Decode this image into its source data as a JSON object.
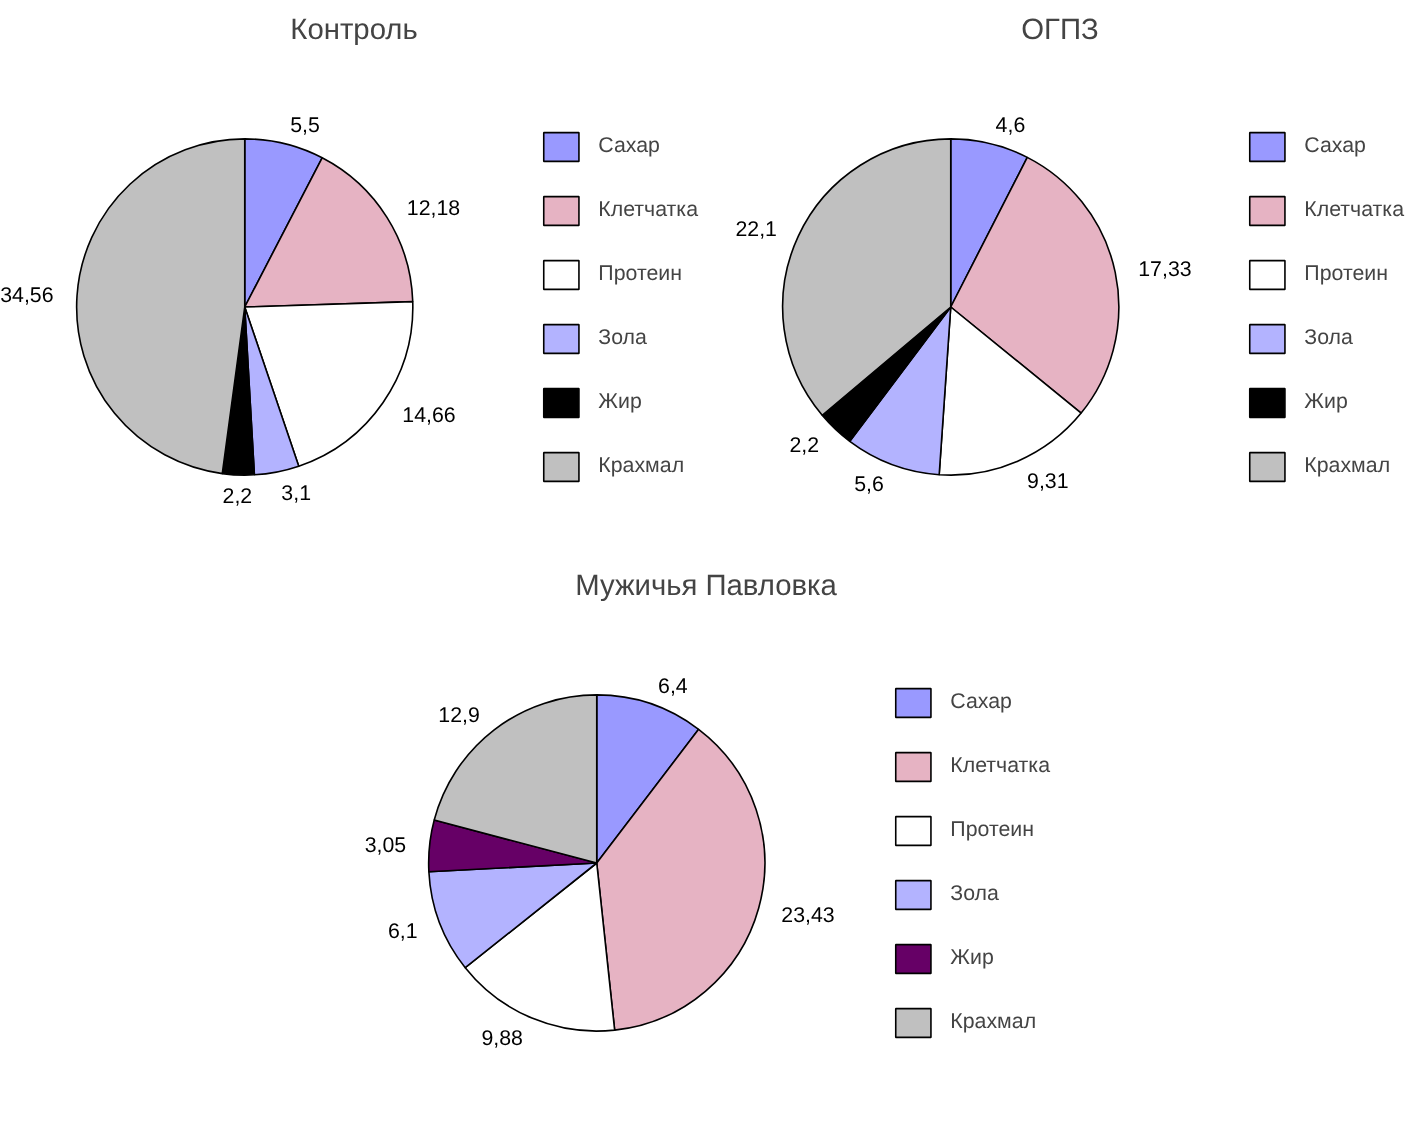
{
  "chart_data": [
    {
      "type": "pie",
      "title": "Контроль",
      "categories": [
        "Сахар",
        "Клетчатка",
        "Протеин",
        "Зола",
        "Жир",
        "Крахмал"
      ],
      "values": [
        5.5,
        12.18,
        14.66,
        3.1,
        2.2,
        34.56
      ],
      "value_labels": [
        "5,5",
        "12,18",
        "14,66",
        "3,1",
        "2,2",
        "34,56"
      ],
      "colors": [
        "#9999ff",
        "#e6b3c3",
        "#ffffff",
        "#b3b3ff",
        "#000000",
        "#c0c0c0"
      ],
      "legend": "right"
    },
    {
      "type": "pie",
      "title": "ОГПЗ",
      "categories": [
        "Сахар",
        "Клетчатка",
        "Протеин",
        "Зола",
        "Жир",
        "Крахмал"
      ],
      "values": [
        4.6,
        17.33,
        9.31,
        5.6,
        2.2,
        22.1
      ],
      "value_labels": [
        "4,6",
        "17,33",
        "9,31",
        "5,6",
        "2,2",
        "22,1"
      ],
      "colors": [
        "#9999ff",
        "#e6b3c3",
        "#ffffff",
        "#b3b3ff",
        "#000000",
        "#c0c0c0"
      ],
      "legend": "right"
    },
    {
      "type": "pie",
      "title": "Мужичья Павловка",
      "categories": [
        "Сахар",
        "Клетчатка",
        "Протеин",
        "Зола",
        "Жир",
        "Крахмал"
      ],
      "values": [
        6.4,
        23.43,
        9.88,
        6.1,
        3.05,
        12.9
      ],
      "value_labels": [
        "6,4",
        "23,43",
        "9,88",
        "6,1",
        "3,05",
        "12,9"
      ],
      "colors": [
        "#9999ff",
        "#e6b3c3",
        "#ffffff",
        "#b3b3ff",
        "#660066",
        "#c0c0c0"
      ],
      "legend": "right"
    }
  ]
}
